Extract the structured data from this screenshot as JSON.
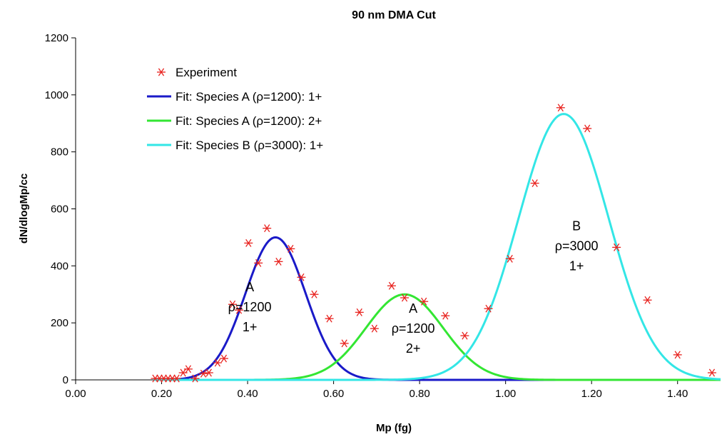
{
  "chart_data": {
    "type": "line",
    "title": "90 nm DMA Cut",
    "xlabel": "Mp (fg)",
    "ylabel": "dN/dlogMp/cc",
    "xlim": [
      0,
      1.5
    ],
    "ylim": [
      0,
      1200
    ],
    "x_ticks": [
      "0.00",
      "0.20",
      "0.40",
      "0.60",
      "0.80",
      "1.00",
      "1.20",
      "1.40"
    ],
    "y_ticks": [
      "0",
      "200",
      "400",
      "600",
      "800",
      "1000",
      "1200"
    ],
    "grid": false,
    "legend_position": "top-left",
    "experiment": {
      "name": "Experiment",
      "color": "#e8231f",
      "points": [
        [
          0.185,
          5
        ],
        [
          0.195,
          5
        ],
        [
          0.205,
          5
        ],
        [
          0.215,
          5
        ],
        [
          0.225,
          5
        ],
        [
          0.235,
          5
        ],
        [
          0.25,
          25
        ],
        [
          0.262,
          38
        ],
        [
          0.278,
          5
        ],
        [
          0.297,
          22
        ],
        [
          0.31,
          25
        ],
        [
          0.33,
          60
        ],
        [
          0.345,
          75
        ],
        [
          0.365,
          265
        ],
        [
          0.38,
          245
        ],
        [
          0.402,
          480
        ],
        [
          0.425,
          410
        ],
        [
          0.445,
          532
        ],
        [
          0.472,
          415
        ],
        [
          0.5,
          460
        ],
        [
          0.525,
          360
        ],
        [
          0.555,
          300
        ],
        [
          0.59,
          215
        ],
        [
          0.625,
          128
        ],
        [
          0.66,
          237
        ],
        [
          0.695,
          180
        ],
        [
          0.735,
          330
        ],
        [
          0.765,
          288
        ],
        [
          0.81,
          275
        ],
        [
          0.86,
          225
        ],
        [
          0.905,
          155
        ],
        [
          0.96,
          250
        ],
        [
          1.01,
          425
        ],
        [
          1.068,
          690
        ],
        [
          1.128,
          955
        ],
        [
          1.19,
          882
        ],
        [
          1.258,
          465
        ],
        [
          1.33,
          280
        ],
        [
          1.4,
          88
        ],
        [
          1.48,
          25
        ]
      ]
    },
    "series": [
      {
        "name": "Fit: Species A (ρ=1200): 1+",
        "color": "#1a1ac8",
        "mu": 0.465,
        "sigma": 0.07,
        "amp": 500
      },
      {
        "name": "Fit: Species A (ρ=1200): 2+",
        "color": "#33e633",
        "mu": 0.765,
        "sigma": 0.09,
        "amp": 300
      },
      {
        "name": "Fit: Species B (ρ=3000): 1+",
        "color": "#33e6e6",
        "mu": 1.135,
        "sigma": 0.105,
        "amp": 933
      }
    ],
    "annotations": [
      {
        "lines": [
          "A",
          "ρ=1200",
          "1+"
        ],
        "x": 0.405,
        "y": 255
      },
      {
        "lines": [
          "A",
          "ρ=1200",
          "2+"
        ],
        "x": 0.785,
        "y": 180
      },
      {
        "lines": [
          "B",
          "ρ=3000",
          "1+"
        ],
        "x": 1.165,
        "y": 470
      }
    ]
  }
}
